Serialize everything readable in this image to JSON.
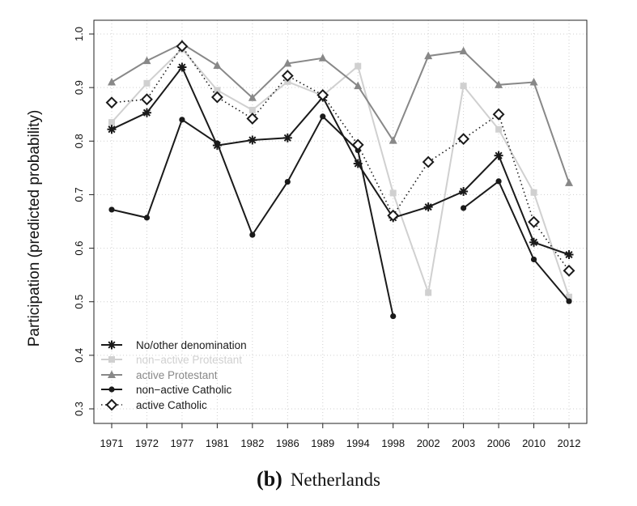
{
  "chart_data": {
    "type": "line",
    "ylabel": "Participation (predicted probability)",
    "xlabel": "",
    "categories": [
      "1971",
      "1972",
      "1977",
      "1981",
      "1982",
      "1986",
      "1989",
      "1994",
      "1998",
      "2002",
      "2003",
      "2006",
      "2010",
      "2012"
    ],
    "ylim": [
      0.3,
      1.0
    ],
    "yticks": [
      0.3,
      0.4,
      0.5,
      0.6,
      0.7,
      0.8,
      0.9,
      1.0
    ],
    "ytick_labels": [
      "0.3",
      "0.4",
      "0.5",
      "0.6",
      "0.7",
      "0.8",
      "0.9",
      "1.0"
    ],
    "grid": true,
    "legend_position": "bottom-left",
    "series": [
      {
        "name": "No/other denomination",
        "color": "#1a1a1a",
        "marker": "asterisk",
        "line": "solid",
        "values": [
          0.822,
          0.853,
          0.938,
          0.792,
          0.802,
          0.806,
          0.882,
          0.758,
          0.657,
          0.677,
          0.706,
          0.773,
          0.611,
          0.588
        ]
      },
      {
        "name": "non−active Protestant",
        "color": "#d0d0d0",
        "marker": "square",
        "line": "solid",
        "values": [
          0.835,
          0.908,
          0.972,
          0.895,
          0.858,
          0.911,
          0.885,
          0.94,
          0.703,
          0.517,
          0.903,
          0.822,
          0.704,
          0.509
        ]
      },
      {
        "name": "active Protestant",
        "color": "#888888",
        "marker": "triangle",
        "line": "solid",
        "values": [
          0.91,
          0.95,
          0.982,
          0.941,
          0.881,
          0.945,
          0.955,
          0.903,
          0.801,
          0.959,
          0.968,
          0.905,
          0.91,
          0.722
        ]
      },
      {
        "name": "non−active Catholic",
        "color": "#1a1a1a",
        "marker": "dot",
        "line": "solid",
        "values": [
          0.672,
          0.657,
          0.84,
          0.796,
          0.625,
          0.724,
          0.846,
          0.783,
          0.473,
          null,
          0.675,
          0.725,
          0.579,
          0.501
        ]
      },
      {
        "name": "active Catholic",
        "color": "#1a1a1a",
        "marker": "diamond",
        "line": "dotted",
        "values": [
          0.872,
          0.878,
          0.977,
          0.882,
          0.842,
          0.922,
          0.886,
          0.793,
          0.661,
          0.761,
          0.804,
          0.85,
          0.649,
          0.558
        ]
      }
    ]
  },
  "caption": {
    "letter": "(b)",
    "country": "Netherlands"
  }
}
